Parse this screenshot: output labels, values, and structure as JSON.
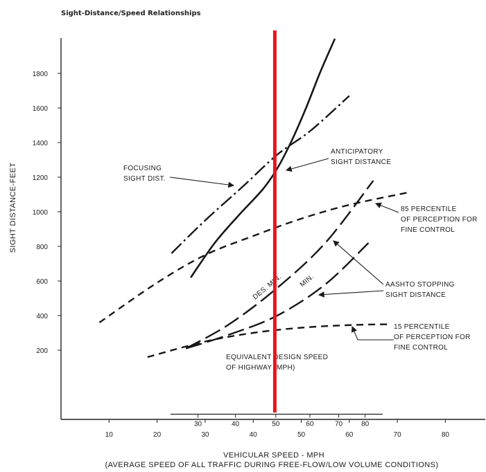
{
  "chart_data": {
    "type": "line",
    "title": "Sight-Distance/Speed Relationships",
    "xlabel": "VEHICULAR SPEED - MPH",
    "xlabel_note": "(AVERAGE SPEED OF ALL TRAFFIC DURING FREE-FLOW/LOW VOLUME CONDITIONS)",
    "ylabel": "SIGHT DISTANCE-FEET",
    "xlim": [
      0,
      90
    ],
    "ylim": [
      -400,
      2000
    ],
    "x_ticks": [
      10,
      20,
      30,
      40,
      50,
      60,
      70,
      80
    ],
    "y_ticks": [
      200,
      400,
      600,
      800,
      1000,
      1200,
      1400,
      1600,
      1800
    ],
    "secondary_axis": {
      "label_lines": [
        "EQUIVALENT DESIGN SPEED",
        "OF HIGHWAY (MPH)"
      ],
      "ticks": [
        30,
        40,
        50,
        60,
        70,
        80
      ],
      "positions": [
        28.5,
        36.3,
        44.7,
        51.8,
        57.8,
        63.3
      ],
      "y_value": -170
    },
    "series": [
      {
        "name": "ANTICIPATORY SIGHT DISTANCE",
        "style": "solid",
        "x": [
          27,
          32,
          37,
          42,
          45,
          48,
          51,
          54,
          57
        ],
        "y": [
          620,
          820,
          980,
          1130,
          1250,
          1410,
          1600,
          1810,
          2000
        ]
      },
      {
        "name": "FOCUSING SIGHT DIST.",
        "style": "dashdot",
        "x": [
          23,
          30,
          38,
          45,
          52,
          60
        ],
        "y": [
          760,
          950,
          1150,
          1330,
          1470,
          1670
        ]
      },
      {
        "name": "85 PERCENTILE OF PERCEPTION FOR FINE CONTROL",
        "style": "dashed",
        "x": [
          8,
          20,
          30,
          40,
          50,
          60,
          72
        ],
        "y": [
          360,
          590,
          750,
          860,
          960,
          1040,
          1110
        ]
      },
      {
        "name": "15 PERCENTILE OF PERCEPTION FOR FINE CONTROL",
        "style": "dashed",
        "x": [
          18,
          30,
          40,
          50,
          60,
          68
        ],
        "y": [
          160,
          250,
          300,
          330,
          345,
          350
        ]
      },
      {
        "name": "AASHTO STOPPING SIGHT DISTANCE DES. MIN.",
        "style": "longdash",
        "x": [
          26,
          35,
          45,
          55,
          65
        ],
        "y": [
          210,
          350,
          560,
          820,
          1180
        ]
      },
      {
        "name": "AASHTO STOPPING SIGHT DISTANCE MIN.",
        "style": "longdash",
        "x": [
          26,
          35,
          45,
          55,
          64
        ],
        "y": [
          210,
          290,
          400,
          580,
          820
        ]
      }
    ],
    "reference_line": {
      "x": 44.5,
      "color": "#e8141c"
    },
    "annotations": [
      {
        "text_lines": [
          "FOCUSING",
          "SIGHT DIST."
        ]
      },
      {
        "text_lines": [
          "ANTICIPATORY",
          "SIGHT DISTANCE"
        ]
      },
      {
        "text_lines": [
          "85 PERCENTILE",
          "OF PERCEPTION FOR",
          "FINE CONTROL"
        ]
      },
      {
        "text_lines": [
          "AASHTO STOPPING",
          "SIGHT DISTANCE"
        ]
      },
      {
        "text_lines": [
          "15 PERCENTILE",
          "OF PERCEPTION FOR",
          "FINE CONTROL"
        ]
      },
      {
        "text_lines": [
          "DES. MIN."
        ]
      },
      {
        "text_lines": [
          "MIN."
        ]
      }
    ],
    "grid": false
  }
}
